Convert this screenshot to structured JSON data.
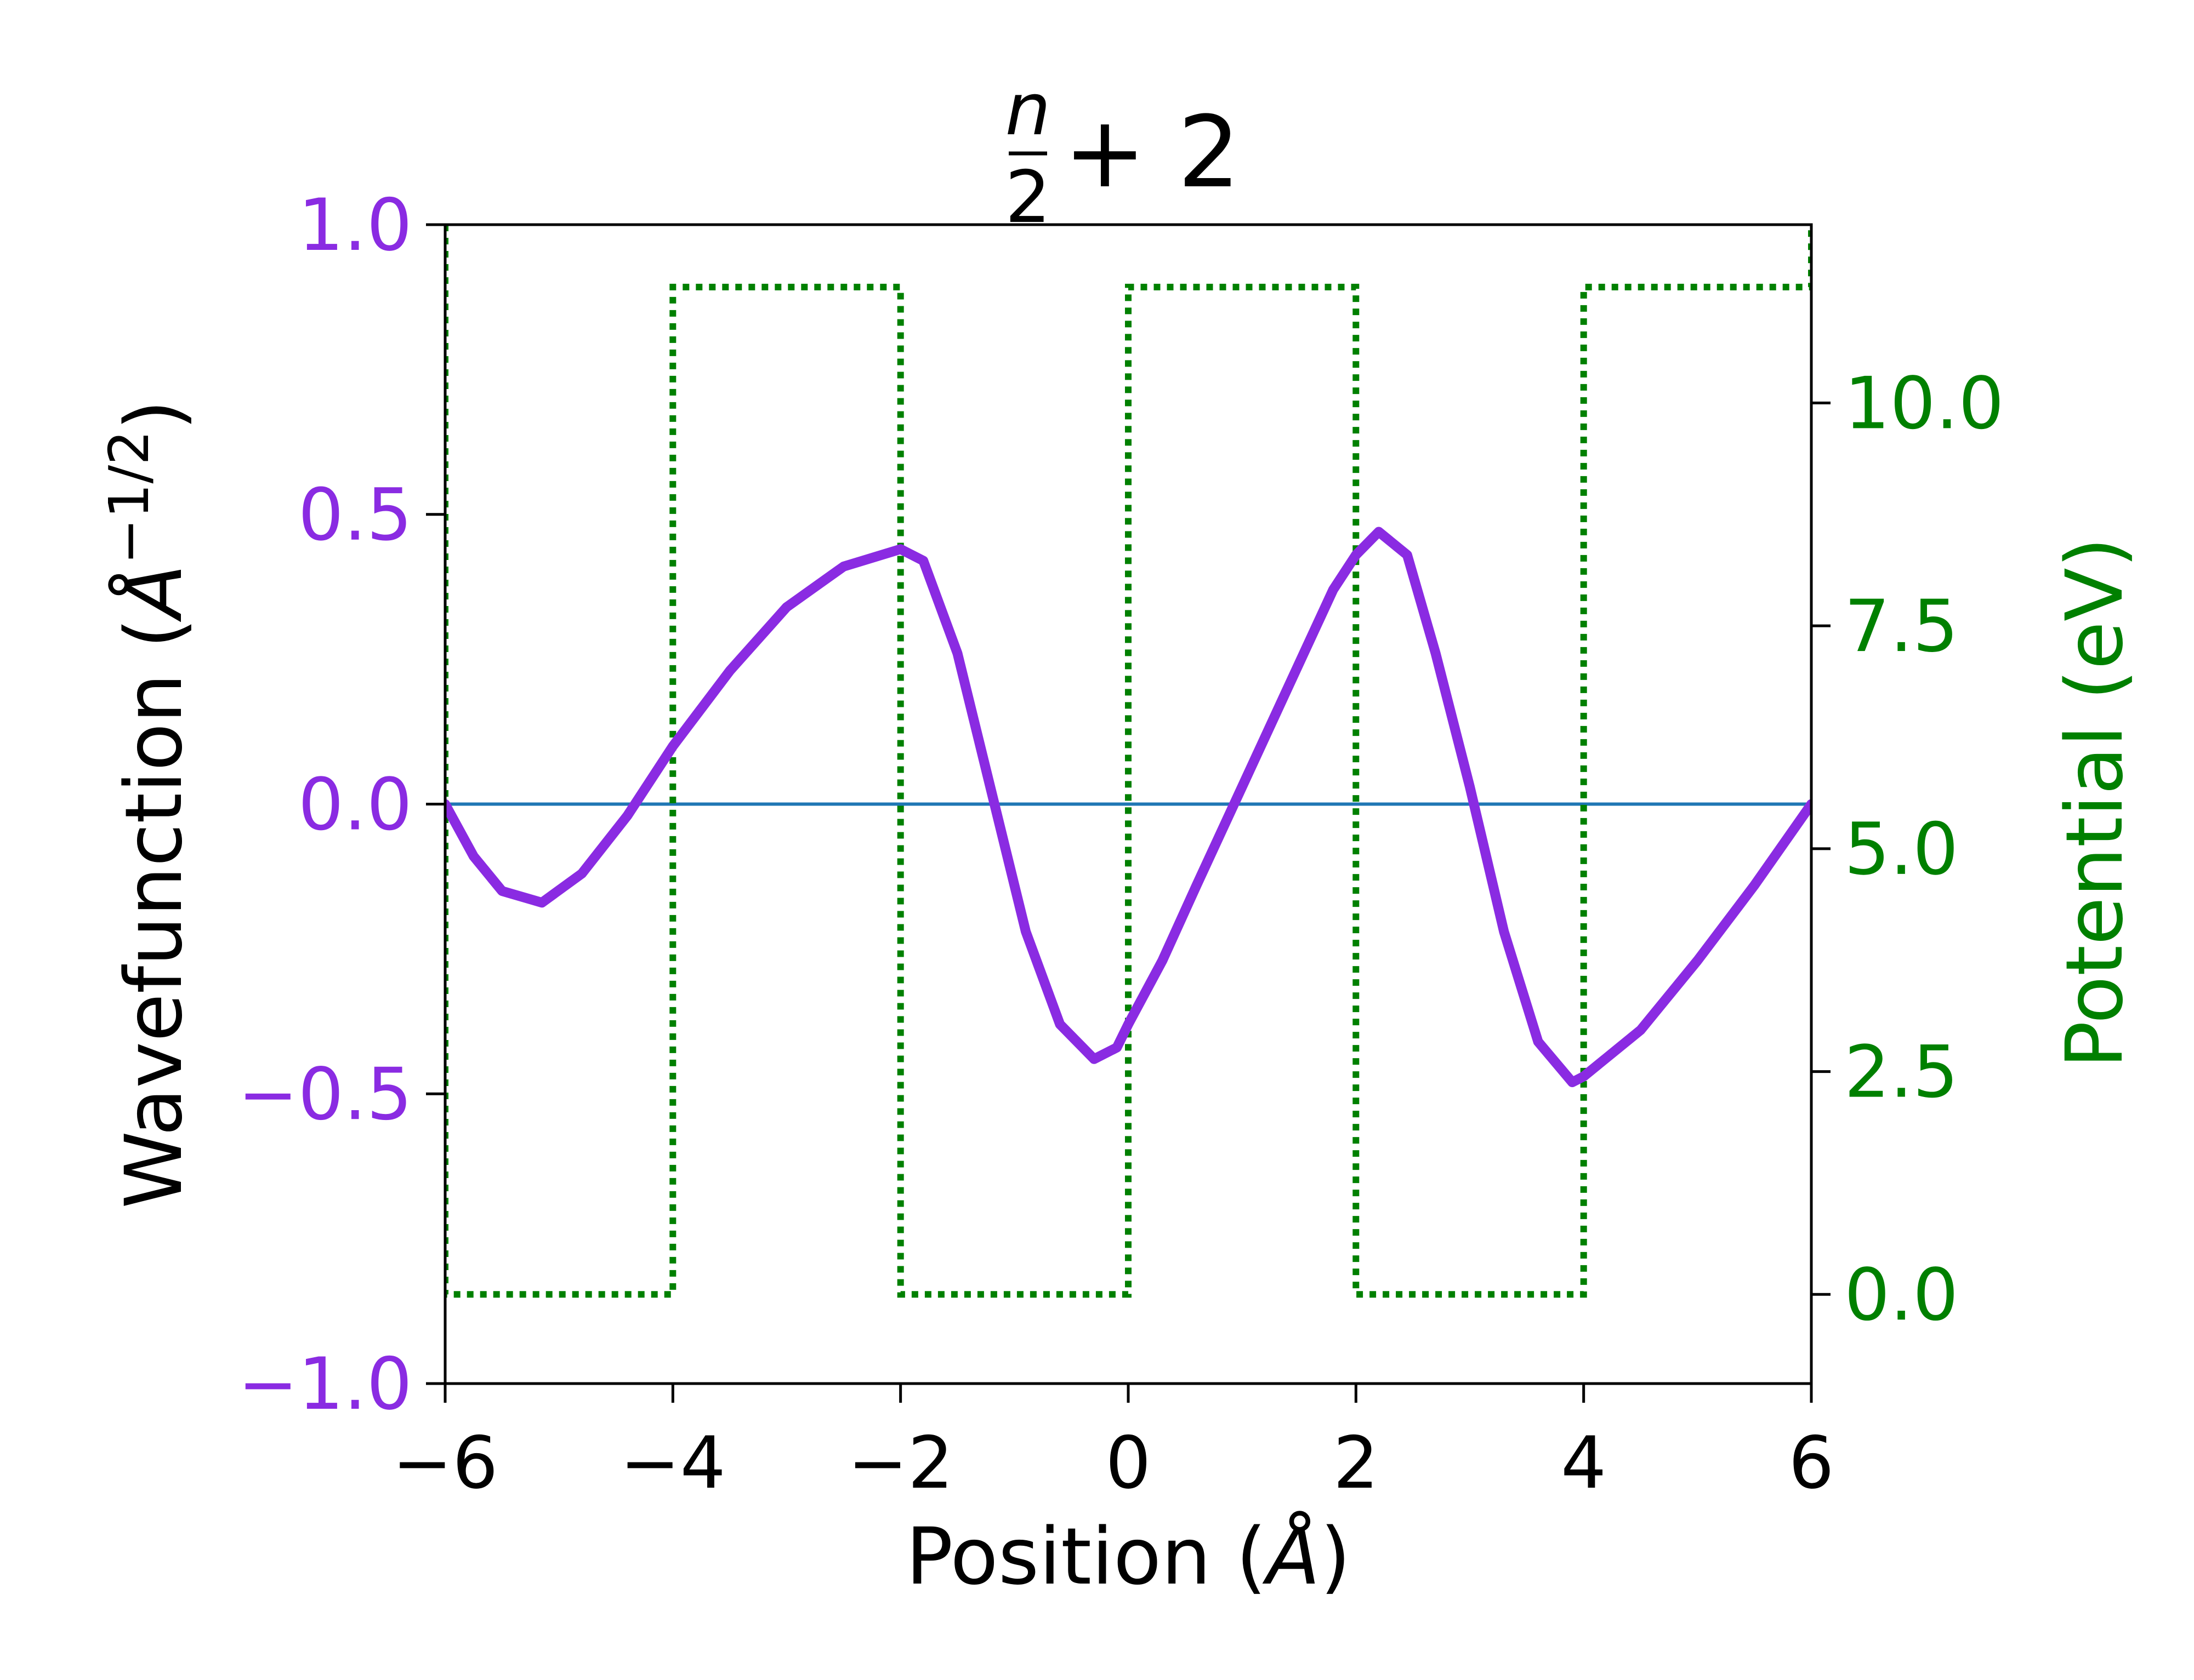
{
  "chart_data": {
    "type": "line",
    "title": {
      "frac_num": "n",
      "frac_den": "2",
      "rest": "+ 2"
    },
    "xlabel": {
      "prefix": "Position (",
      "unit": "Å",
      "suffix": ")"
    },
    "ylabel_left": {
      "prefix": "Wavefunction (",
      "unit": "Å",
      "exp": "−1/2",
      "suffix": ")"
    },
    "ylabel_right": "Potential (eV)",
    "xlim": [
      -6,
      6
    ],
    "ylim_left": [
      -1.0,
      1.0
    ],
    "ylim_right": [
      -1.0,
      12.0
    ],
    "x_ticks": [
      "−6",
      "−4",
      "−2",
      "0",
      "2",
      "4",
      "6"
    ],
    "y_left_ticks": [
      "−1.0",
      "−0.5",
      "0.0",
      "0.5",
      "1.0"
    ],
    "y_right_ticks": [
      "0.0",
      "2.5",
      "5.0",
      "7.5",
      "10.0"
    ],
    "colors": {
      "wavefunction": "#8a2be2",
      "potential": "#008000",
      "zero_line": "#1f77b4",
      "axis": "#000000"
    },
    "series": [
      {
        "axis": "left",
        "style": "solid",
        "x": [
          -6.0,
          -5.75,
          -5.5,
          -5.15,
          -4.8,
          -4.4,
          -4.0,
          -3.5,
          -3.0,
          -2.5,
          -2.0,
          -1.8,
          -1.5,
          -1.2,
          -0.9,
          -0.6,
          -0.3,
          -0.1,
          0.0,
          0.3,
          0.6,
          1.0,
          1.4,
          1.8,
          2.0,
          2.2,
          2.45,
          2.7,
          3.0,
          3.3,
          3.6,
          3.9,
          4.0,
          4.5,
          5.0,
          5.5,
          6.0
        ],
        "y": [
          0.0,
          -0.09,
          -0.15,
          -0.17,
          -0.12,
          -0.02,
          0.1,
          0.23,
          0.34,
          0.41,
          0.44,
          0.42,
          0.26,
          0.02,
          -0.22,
          -0.38,
          -0.44,
          -0.42,
          -0.38,
          -0.27,
          -0.14,
          0.03,
          0.2,
          0.37,
          0.43,
          0.47,
          0.43,
          0.26,
          0.03,
          -0.22,
          -0.41,
          -0.48,
          -0.47,
          -0.39,
          -0.27,
          -0.14,
          0.0
        ]
      },
      {
        "axis": "right",
        "style": "dotted",
        "x": [
          -6,
          -6,
          -4,
          -4,
          -2,
          -2,
          0,
          0,
          2,
          2,
          4,
          4,
          6,
          6
        ],
        "y": [
          12.0,
          0,
          0,
          11.3,
          11.3,
          0,
          0,
          11.3,
          11.3,
          0,
          0,
          11.3,
          11.3,
          12.0
        ]
      },
      {
        "axis": "left",
        "style": "thin",
        "x": [
          -6,
          6
        ],
        "y": [
          0,
          0
        ]
      }
    ]
  }
}
